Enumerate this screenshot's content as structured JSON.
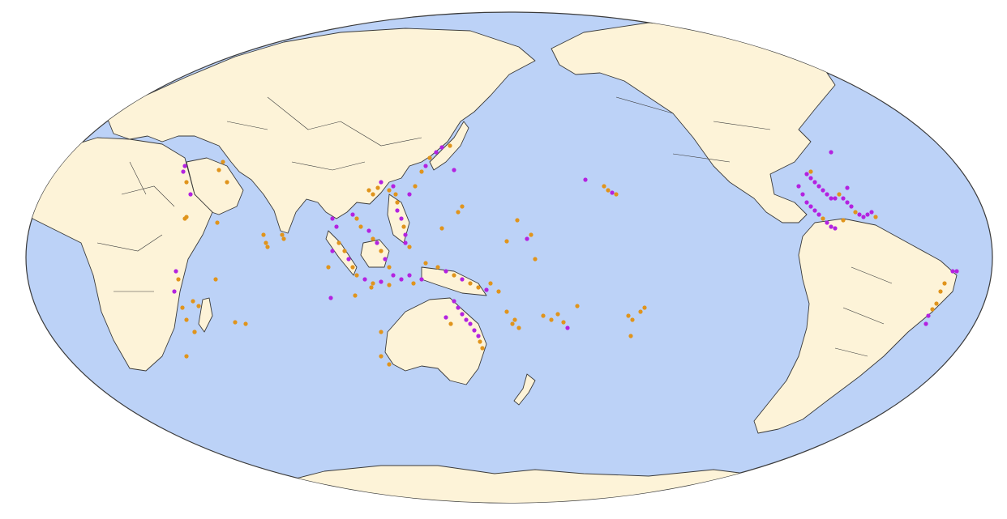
{
  "map": {
    "projection": "mollweide",
    "center": "pacific",
    "colors": {
      "ocean": "#bcd2f7",
      "land": "#fdf3d8",
      "outline": "#3a3a3a",
      "marker_a": "#b322e0",
      "marker_b": "#e0941c"
    },
    "marker_types": [
      {
        "id": "a",
        "color": "#b322e0"
      },
      {
        "id": "b",
        "color": "#e0941c"
      }
    ]
  }
}
